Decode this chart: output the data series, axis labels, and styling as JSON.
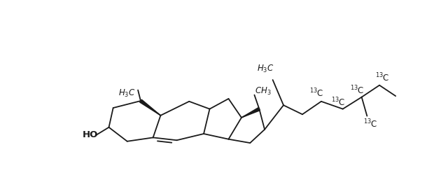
{
  "bg_color": "#ffffff",
  "line_color": "#1a1a1a",
  "lw": 1.3,
  "figsize": [
    6.4,
    2.57
  ],
  "dpi": 100,
  "fs": 8.5,
  "fs_ho": 9.5
}
